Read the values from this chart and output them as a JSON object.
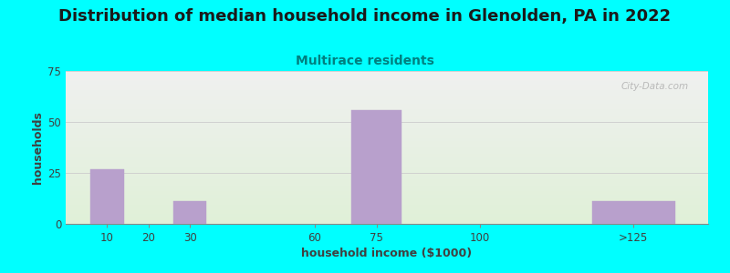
{
  "title": "Distribution of median household income in Glenolden, PA in 2022",
  "subtitle": "Multirace residents",
  "xlabel": "household income ($1000)",
  "ylabel": "households",
  "background_color": "#00FFFF",
  "plot_bg_top": "#f0f0f0",
  "plot_bg_bottom": "#e0f0d8",
  "bar_color": "#b8a0cc",
  "bar_edge_color": "#b8a0cc",
  "categories": [
    "10",
    "20",
    "30",
    "60",
    "75",
    "100",
    ">125"
  ],
  "x_positions": [
    10,
    20,
    30,
    60,
    75,
    100,
    137
  ],
  "values": [
    27,
    0,
    11,
    0,
    56,
    0,
    11
  ],
  "bar_widths": [
    8,
    0,
    8,
    0,
    12,
    0,
    20
  ],
  "ylim": [
    0,
    75
  ],
  "xlim": [
    0,
    155
  ],
  "yticks": [
    0,
    25,
    50,
    75
  ],
  "xtick_positions": [
    10,
    20,
    30,
    60,
    75,
    100,
    137
  ],
  "xtick_labels": [
    "10",
    "20",
    "30",
    "60",
    "75",
    "100",
    ">125"
  ],
  "title_fontsize": 13,
  "subtitle_fontsize": 10,
  "subtitle_color": "#008080",
  "axis_label_fontsize": 9,
  "tick_color": "#404040",
  "watermark": "City-Data.com",
  "grid_color": "#cccccc"
}
